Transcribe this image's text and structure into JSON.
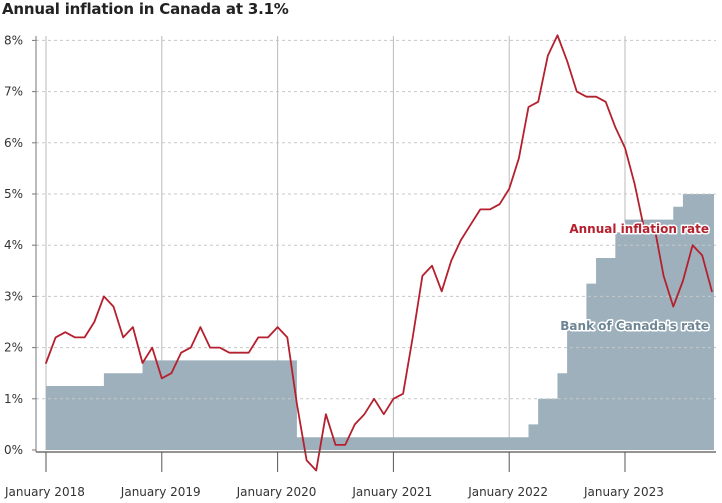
{
  "chart_data": {
    "type": "line",
    "title": "Annual inflation in Canada at 3.1%",
    "xlabel": "",
    "ylabel": "",
    "ylim": [
      0,
      8
    ],
    "yticks": [
      "0%",
      "1%",
      "2%",
      "3%",
      "4%",
      "5%",
      "6%",
      "7%",
      "8%"
    ],
    "xticks": [
      "January 2018",
      "January 2019",
      "January 2020",
      "January 2021",
      "January 2022",
      "January 2023"
    ],
    "grid": true,
    "colors": {
      "inflation": "#b5202e",
      "policy": "#9eb0bc",
      "policy_label": "#6d8594"
    },
    "series": [
      {
        "name": "Annual inflation rate",
        "style": "line",
        "values": [
          1.7,
          2.2,
          2.3,
          2.2,
          2.2,
          2.5,
          3.0,
          2.8,
          2.2,
          2.4,
          1.7,
          2.0,
          1.4,
          1.5,
          1.9,
          2.0,
          2.4,
          2.0,
          2.0,
          1.9,
          1.9,
          1.9,
          2.2,
          2.2,
          2.4,
          2.2,
          0.9,
          -0.2,
          -0.4,
          0.7,
          0.1,
          0.1,
          0.5,
          0.7,
          1.0,
          0.7,
          1.0,
          1.1,
          2.2,
          3.4,
          3.6,
          3.1,
          3.7,
          4.1,
          4.4,
          4.7,
          4.7,
          4.8,
          5.1,
          5.7,
          6.7,
          6.8,
          7.7,
          8.1,
          7.6,
          7.0,
          6.9,
          6.9,
          6.8,
          6.3,
          5.9,
          5.2,
          4.3,
          4.4,
          3.4,
          2.8,
          3.3,
          4.0,
          3.8,
          3.1
        ]
      },
      {
        "name": "Bank of Canada's rate",
        "style": "step-area",
        "values": [
          1.25,
          1.25,
          1.25,
          1.25,
          1.25,
          1.25,
          1.5,
          1.5,
          1.5,
          1.5,
          1.75,
          1.75,
          1.75,
          1.75,
          1.75,
          1.75,
          1.75,
          1.75,
          1.75,
          1.75,
          1.75,
          1.75,
          1.75,
          1.75,
          1.75,
          1.75,
          0.25,
          0.25,
          0.25,
          0.25,
          0.25,
          0.25,
          0.25,
          0.25,
          0.25,
          0.25,
          0.25,
          0.25,
          0.25,
          0.25,
          0.25,
          0.25,
          0.25,
          0.25,
          0.25,
          0.25,
          0.25,
          0.25,
          0.25,
          0.25,
          0.5,
          1.0,
          1.0,
          1.5,
          2.5,
          2.5,
          3.25,
          3.75,
          3.75,
          4.25,
          4.5,
          4.5,
          4.5,
          4.5,
          4.5,
          4.75,
          5.0,
          5.0,
          5.0,
          5.0
        ]
      }
    ]
  }
}
